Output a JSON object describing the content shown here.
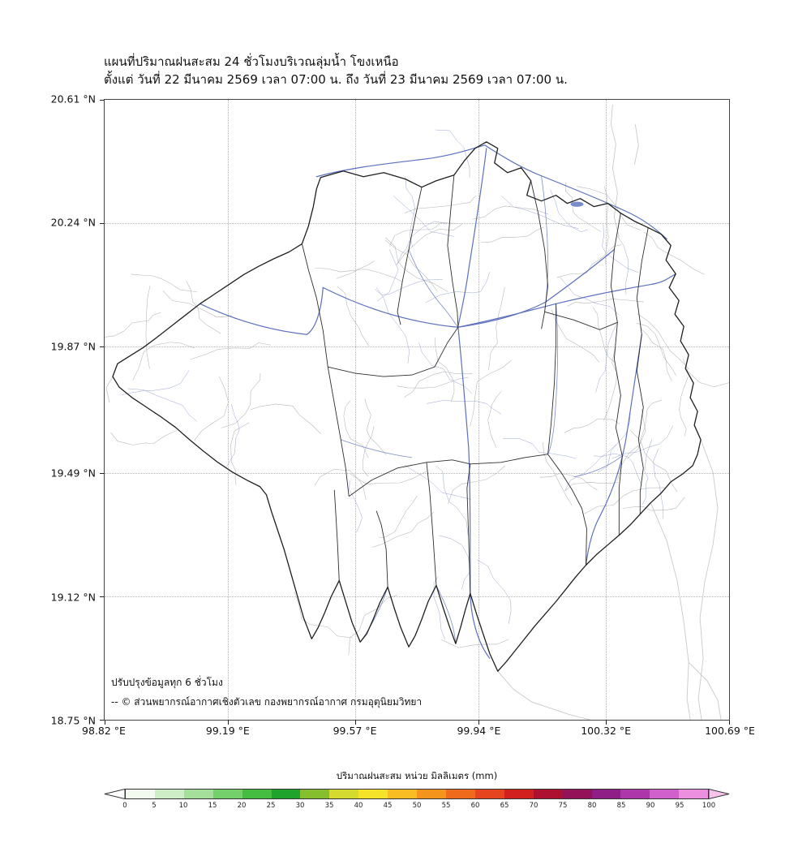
{
  "title": "แผนที่ปริมาณฝนสะสม 24 ชั่วโมงบริเวณลุ่มน้ำ โขงเหนือ",
  "subtitle": "ตั้งแต่ วันที่ 22 มีนาคม 2569 เวลา 07:00 น. ถึง วันที่ 23 มีนาคม 2569 เวลา 07:00 น.",
  "map": {
    "note_line1": "ปรับปรุงข้อมูลทุก 6 ชั่วโมง",
    "note_line2": "-- © ส่วนพยากรณ์อากาศเชิงตัวเลข กองพยากรณ์อากาศ กรมอุตุนิยมวิทยา"
  },
  "axes": {
    "lat_ticks": [
      "20.61 °N",
      "20.24 °N",
      "19.87 °N",
      "19.49 °N",
      "19.12 °N",
      "18.75 °N"
    ],
    "lon_ticks": [
      "98.82 °E",
      "99.19 °E",
      "99.57 °E",
      "99.94 °E",
      "100.32 °E",
      "100.69 °E"
    ]
  },
  "colorbar": {
    "title": "ปริมาณฝนสะสม หน่วย มิลลิเมตร (mm)",
    "tick_labels": [
      "0",
      "5",
      "10",
      "15",
      "20",
      "25",
      "30",
      "35",
      "40",
      "45",
      "50",
      "55",
      "60",
      "65",
      "70",
      "75",
      "80",
      "85",
      "90",
      "95",
      "100"
    ],
    "colors": [
      "#f2faef",
      "#cdeec6",
      "#a4e09a",
      "#74d06a",
      "#44bd41",
      "#1fa32c",
      "#86bf2e",
      "#d4da30",
      "#f5e32a",
      "#f7bd22",
      "#f5941c",
      "#ef6a1d",
      "#e6431f",
      "#d1201d",
      "#ad1030",
      "#941257",
      "#8f1f86",
      "#ad36ab",
      "#d060cb",
      "#ec8fdf"
    ],
    "extend_left": "#ffffff",
    "extend_right": "#f6c3ec"
  },
  "map_colors": {
    "basin_outline": "#1f1f1f",
    "subbasin_outline": "#2e2e2e",
    "river": "#5c6fbe",
    "river_minor": "#7c8cc9",
    "stream_gray": "#b4b4b4",
    "stream_blue": "#9aa6cf",
    "faint_boundary": "#c9c9c9"
  }
}
